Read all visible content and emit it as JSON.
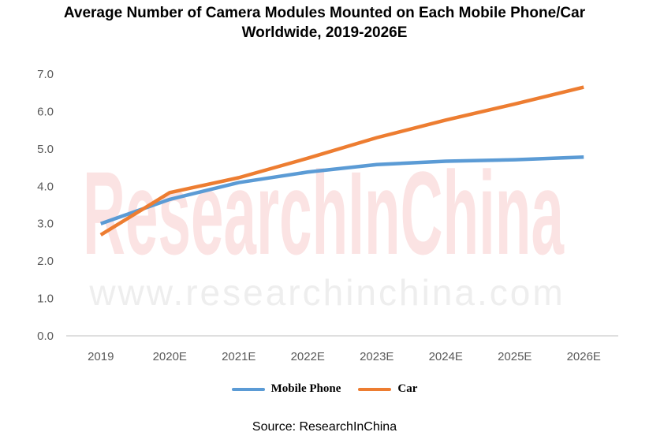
{
  "title_line1": "Average Number of Camera Modules Mounted on Each Mobile Phone/Car",
  "title_line2": "Worldwide, 2019-2026E",
  "source": "Source: ResearchInChina",
  "watermark_main": "ResearchInChina",
  "watermark_url": "www.researchinchina.com",
  "chart_data": {
    "type": "line",
    "categories": [
      "2019",
      "2020E",
      "2021E",
      "2022E",
      "2023E",
      "2024E",
      "2025E",
      "2026E"
    ],
    "series": [
      {
        "name": "Mobile Phone",
        "color": "#5b9bd5",
        "values": [
          3.0,
          3.65,
          4.1,
          4.38,
          4.58,
          4.67,
          4.71,
          4.78
        ]
      },
      {
        "name": "Car",
        "color": "#ed7d31",
        "values": [
          2.7,
          3.83,
          4.23,
          4.75,
          5.3,
          5.77,
          6.2,
          6.65
        ]
      }
    ],
    "ylim": [
      0,
      7
    ],
    "yticks": [
      "0.0",
      "1.0",
      "2.0",
      "3.0",
      "4.0",
      "5.0",
      "6.0",
      "7.0"
    ],
    "legend_position": "bottom",
    "grid": false
  }
}
